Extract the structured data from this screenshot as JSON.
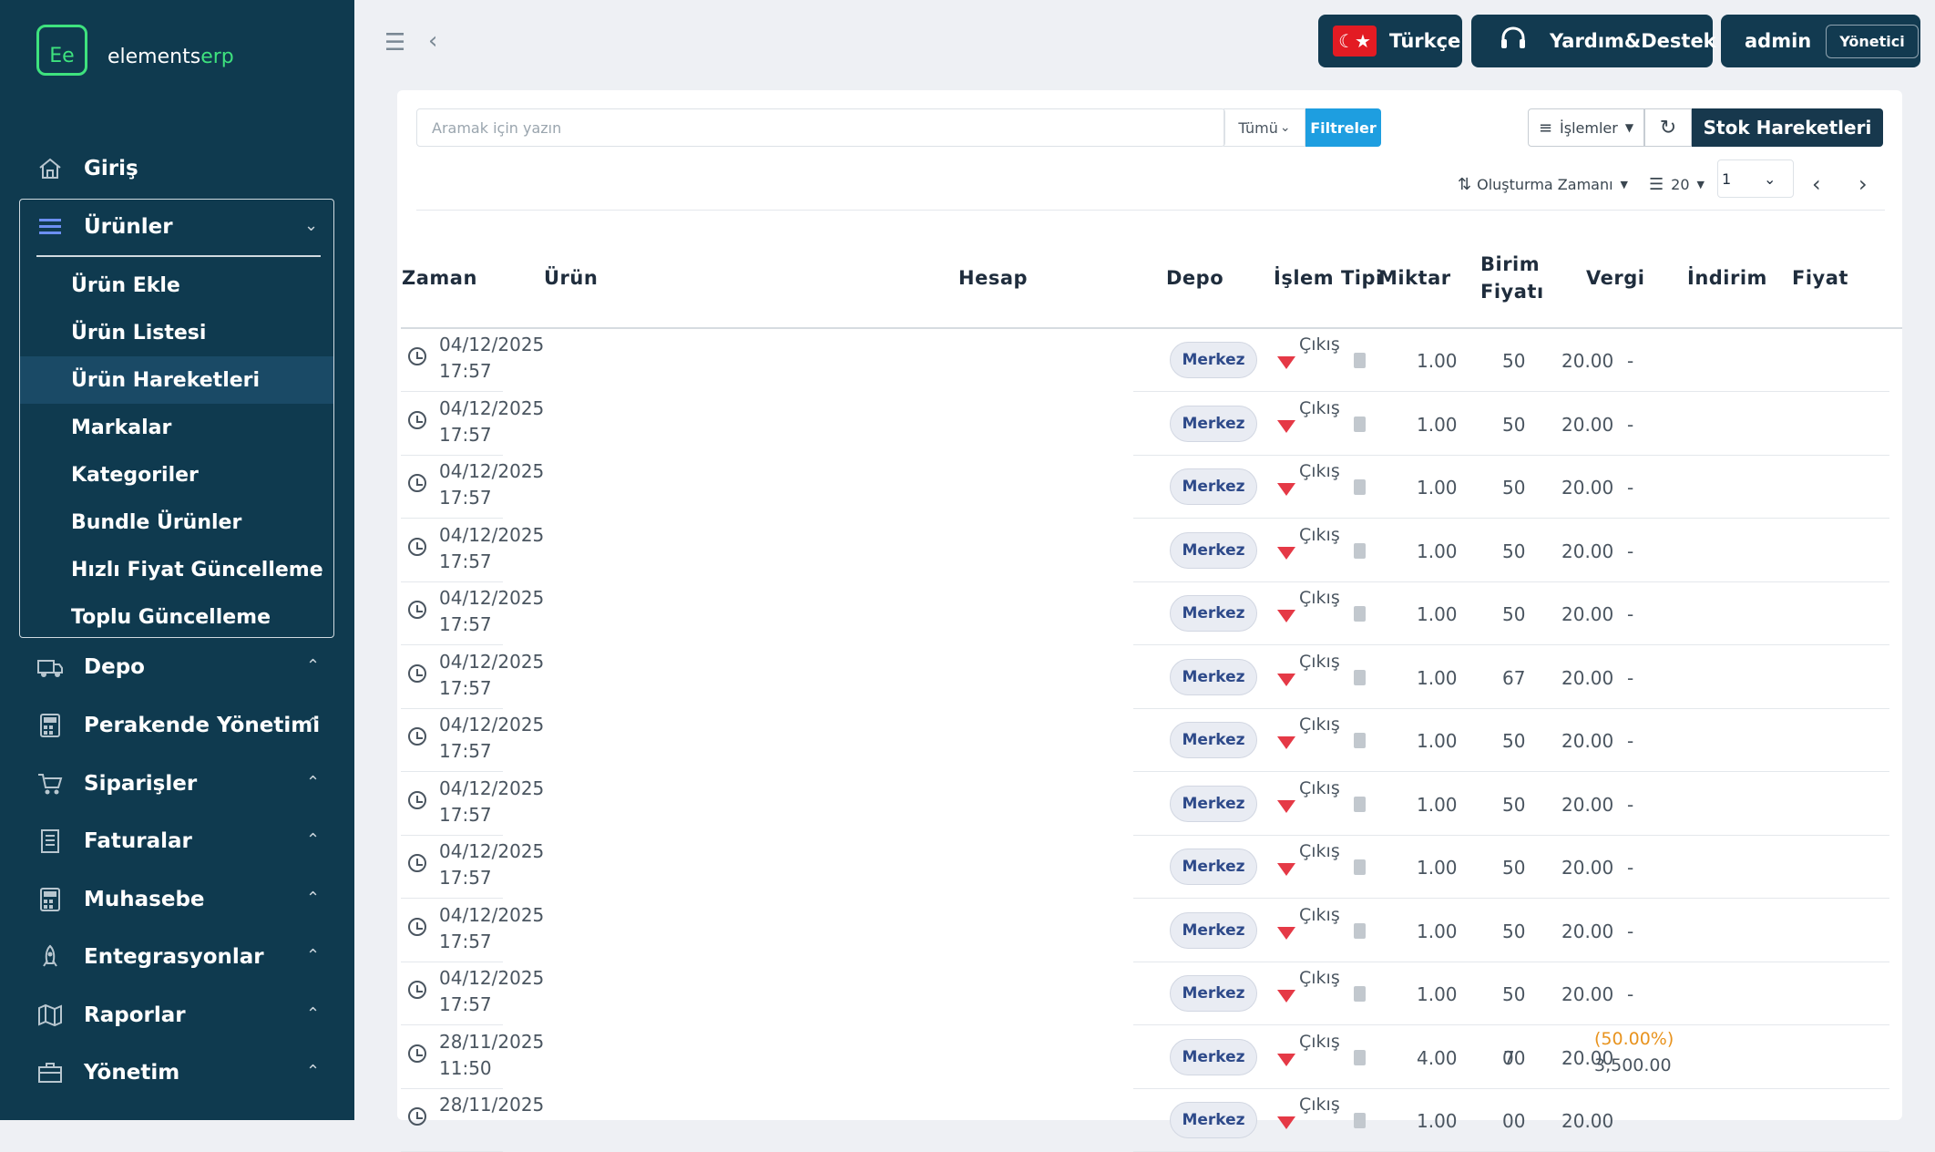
{
  "brand": {
    "logo_text": "Ee",
    "name_part1": "elements",
    "name_part2": "erp"
  },
  "sidebar": {
    "home": "Giriş",
    "urunler": {
      "label": "Ürünler",
      "items": [
        "Ürün Ekle",
        "Ürün Listesi",
        "Ürün Hareketleri",
        "Markalar",
        "Kategoriler",
        "Bundle Ürünler",
        "Hızlı Fiyat Güncelleme",
        "Toplu Güncelleme"
      ],
      "active_index": 2
    },
    "groups": [
      "Depo",
      "Perakende Yönetimi",
      "Siparişler",
      "Faturalar",
      "Muhasebe",
      "Entegrasyonlar",
      "Raporlar",
      "Yönetim"
    ]
  },
  "topbar": {
    "language": "Türkçe",
    "support": "Yardım&Destek",
    "user": "admin",
    "role": "Yönetici"
  },
  "toolbar": {
    "search_placeholder": "Aramak için yazın",
    "filter_scope": "Tümü",
    "filters_label": "Filtreler",
    "actions_label": "İşlemler",
    "title_button": "Stok Hareketleri",
    "sort_label": "Oluşturma Zamanı",
    "page_size": "20",
    "page": "1"
  },
  "table": {
    "headers": {
      "zaman": "Zaman",
      "urun": "Ürün",
      "hesap": "Hesap",
      "depo": "Depo",
      "islem_tipi": "İşlem Tipi",
      "miktar": "Miktar",
      "birim_fiyat_1": "Birim",
      "birim_fiyat_2": "Fiyatı",
      "vergi": "Vergi",
      "indirim": "İndirim",
      "fiyat": "Fiyat"
    },
    "rows": [
      {
        "date": "04/12/2025",
        "time": "17:57",
        "depo": "Merkez",
        "tip": "Çıkış",
        "miktar": "1.00",
        "birim": "50",
        "vergi": "20.00",
        "indirim": "-"
      },
      {
        "date": "04/12/2025",
        "time": "17:57",
        "depo": "Merkez",
        "tip": "Çıkış",
        "miktar": "1.00",
        "birim": "50",
        "vergi": "20.00",
        "indirim": "-"
      },
      {
        "date": "04/12/2025",
        "time": "17:57",
        "depo": "Merkez",
        "tip": "Çıkış",
        "miktar": "1.00",
        "birim": "50",
        "vergi": "20.00",
        "indirim": "-"
      },
      {
        "date": "04/12/2025",
        "time": "17:57",
        "depo": "Merkez",
        "tip": "Çıkış",
        "miktar": "1.00",
        "birim": "50",
        "vergi": "20.00",
        "indirim": "-"
      },
      {
        "date": "04/12/2025",
        "time": "17:57",
        "depo": "Merkez",
        "tip": "Çıkış",
        "miktar": "1.00",
        "birim": "50",
        "vergi": "20.00",
        "indirim": "-"
      },
      {
        "date": "04/12/2025",
        "time": "17:57",
        "depo": "Merkez",
        "tip": "Çıkış",
        "miktar": "1.00",
        "birim": "67",
        "vergi": "20.00",
        "indirim": "-"
      },
      {
        "date": "04/12/2025",
        "time": "17:57",
        "depo": "Merkez",
        "tip": "Çıkış",
        "miktar": "1.00",
        "birim": "50",
        "vergi": "20.00",
        "indirim": "-"
      },
      {
        "date": "04/12/2025",
        "time": "17:57",
        "depo": "Merkez",
        "tip": "Çıkış",
        "miktar": "1.00",
        "birim": "50",
        "vergi": "20.00",
        "indirim": "-"
      },
      {
        "date": "04/12/2025",
        "time": "17:57",
        "depo": "Merkez",
        "tip": "Çıkış",
        "miktar": "1.00",
        "birim": "50",
        "vergi": "20.00",
        "indirim": "-"
      },
      {
        "date": "04/12/2025",
        "time": "17:57",
        "depo": "Merkez",
        "tip": "Çıkış",
        "miktar": "1.00",
        "birim": "50",
        "vergi": "20.00",
        "indirim": "-"
      },
      {
        "date": "04/12/2025",
        "time": "17:57",
        "depo": "Merkez",
        "tip": "Çıkış",
        "miktar": "1.00",
        "birim": "50",
        "vergi": "20.00",
        "indirim": "-"
      },
      {
        "date": "28/11/2025",
        "time": "11:50",
        "depo": "Merkez",
        "tip": "Çıkış",
        "miktar": "4.00",
        "birim": "00",
        "vergi": "20.00",
        "indirim_pct": "(50.00%)",
        "indirim_amt": "3,500.00",
        "birim_cut": "7"
      },
      {
        "date": "28/11/2025",
        "time": "",
        "depo": "Merkez",
        "tip": "Çıkış",
        "miktar": "1.00",
        "birim": "00",
        "vergi": "20.00",
        "indirim": ""
      }
    ]
  },
  "colors": {
    "sidebar": "#0f3a4f",
    "accent_green": "#3ee27e",
    "filter_blue": "#1e9ee0",
    "exit_red": "#e53946",
    "discount_orange": "#e8931e"
  }
}
